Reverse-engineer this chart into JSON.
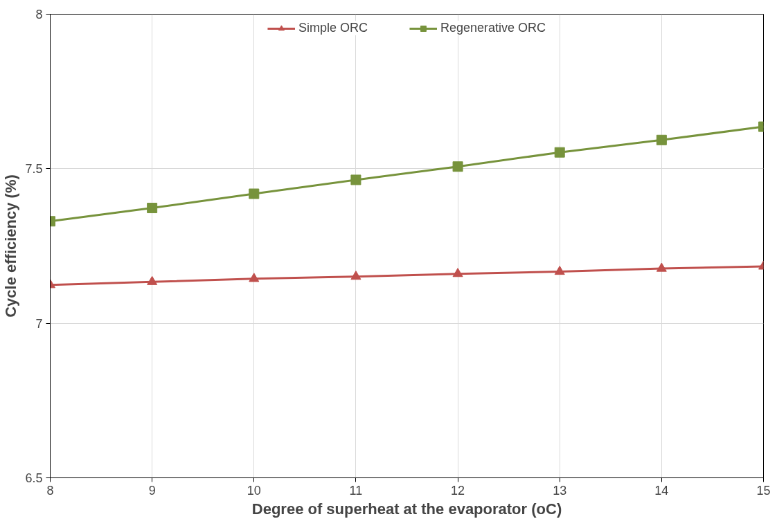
{
  "chart_data": {
    "type": "line",
    "xlabel": "Degree of superheat at the evaporator (oC)",
    "ylabel": "Cycle efficiency (%)",
    "x": [
      8,
      9,
      10,
      11,
      12,
      13,
      14,
      15
    ],
    "series": [
      {
        "name": "Simple ORC",
        "color": "#c0504d",
        "marker": "triangle",
        "values": [
          7.124,
          7.134,
          7.144,
          7.151,
          7.16,
          7.167,
          7.177,
          7.184
        ]
      },
      {
        "name": "Regenerative ORC",
        "color": "#77933c",
        "marker": "square",
        "values": [
          7.33,
          7.373,
          7.419,
          7.464,
          7.507,
          7.553,
          7.593,
          7.636
        ]
      }
    ],
    "xlim": [
      8,
      15
    ],
    "xticks": [
      8,
      9,
      10,
      11,
      12,
      13,
      14,
      15
    ],
    "ylim": [
      6.5,
      8
    ],
    "yticks": [
      6.5,
      7,
      7.5,
      8
    ],
    "grid": true,
    "legend": "top",
    "line_style": "solid"
  }
}
